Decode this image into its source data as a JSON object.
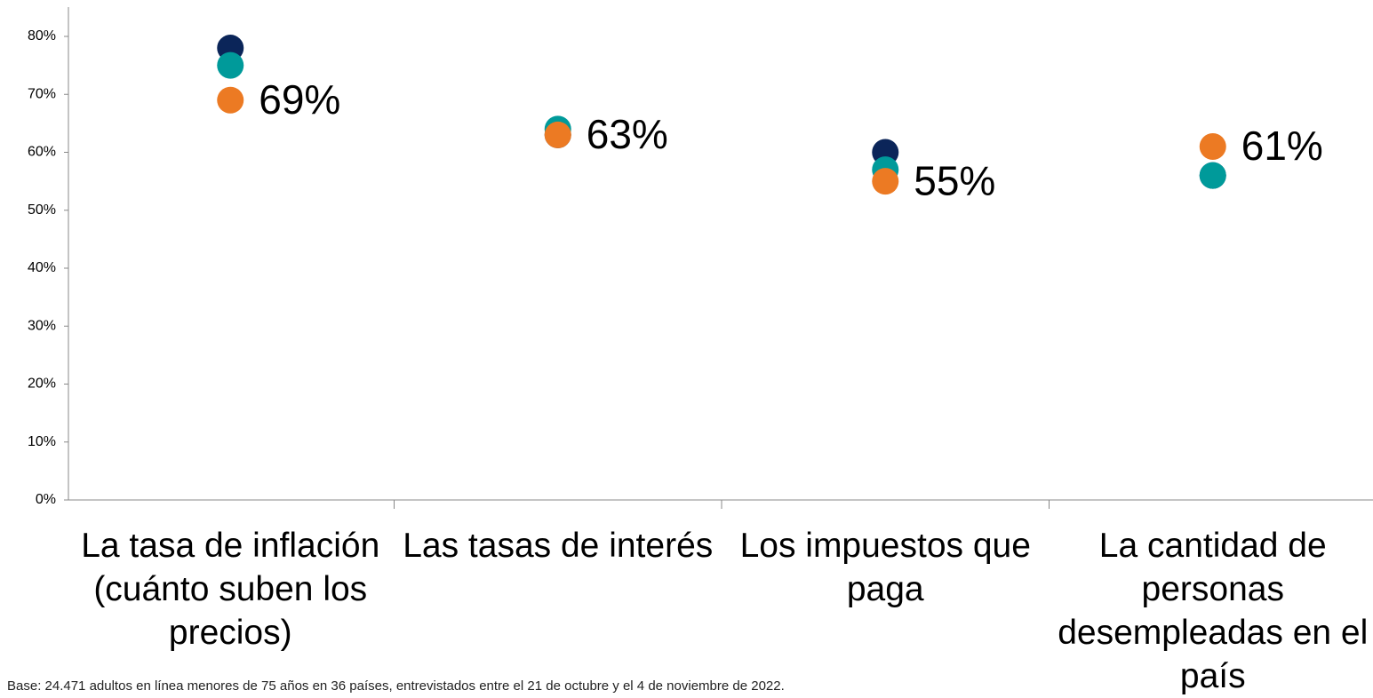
{
  "chart_data": {
    "type": "dot",
    "categories": [
      "La tasa de inflación (cuánto suben los precios)",
      "Las tasas de interés",
      "Los impuestos que paga",
      "La cantidad de personas desempleadas en el país"
    ],
    "series": [
      {
        "color": "#0b2559",
        "values": [
          78,
          63,
          60,
          56
        ]
      },
      {
        "color": "#009a9a",
        "values": [
          75,
          64,
          57,
          56
        ]
      },
      {
        "color": "#ec7a23",
        "values": [
          69,
          63,
          55,
          61
        ],
        "value_labels": [
          "69%",
          "63%",
          "55%",
          "61%"
        ]
      }
    ],
    "ylim": [
      0,
      80
    ],
    "yticks": [
      {
        "value": 0,
        "label": "0%"
      },
      {
        "value": 10,
        "label": "10%"
      },
      {
        "value": 20,
        "label": "20%"
      },
      {
        "value": 30,
        "label": "30%"
      },
      {
        "value": 40,
        "label": "40%"
      },
      {
        "value": 50,
        "label": "50%"
      },
      {
        "value": 60,
        "label": "60%"
      },
      {
        "value": 70,
        "label": "70%"
      },
      {
        "value": 80,
        "label": "80%"
      }
    ],
    "note": "Base: 24.471 adultos en línea menores de 75 años en 36 países, entrevistados entre el 21 de octubre y el 4 de noviembre de 2022."
  }
}
